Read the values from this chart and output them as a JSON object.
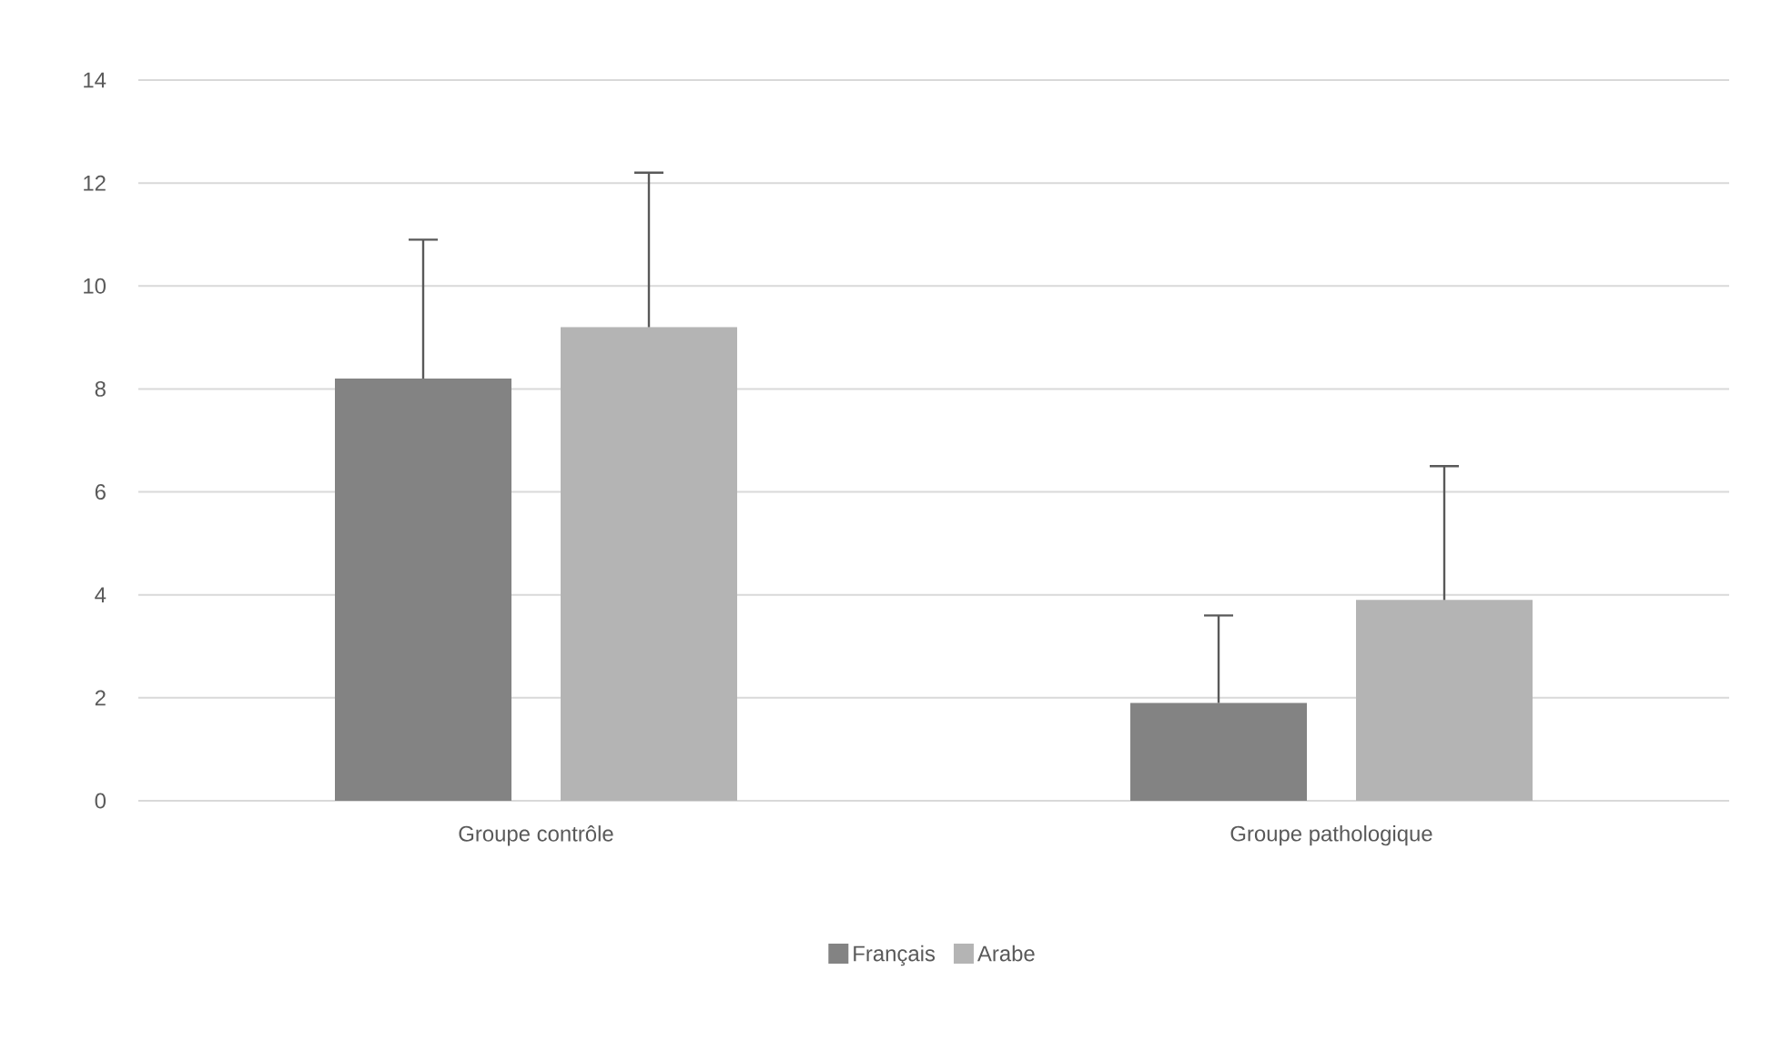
{
  "chart_data": {
    "type": "bar",
    "categories": [
      "Groupe contrôle",
      "Groupe pathologique"
    ],
    "series": [
      {
        "name": "Français",
        "color": "#838383",
        "values": [
          8.2,
          1.9
        ],
        "errors": [
          [
            8.2,
            10.9
          ],
          [
            1.9,
            3.6
          ]
        ]
      },
      {
        "name": "Arabe",
        "color": "#b4b4b4",
        "values": [
          9.2,
          3.9
        ],
        "errors": [
          [
            9.2,
            12.2
          ],
          [
            3.9,
            6.5
          ]
        ]
      }
    ],
    "ylim": [
      0,
      14
    ],
    "yticks": [
      0,
      2,
      4,
      6,
      8,
      10,
      12,
      14
    ],
    "grid": "y",
    "legend": "bottom"
  }
}
